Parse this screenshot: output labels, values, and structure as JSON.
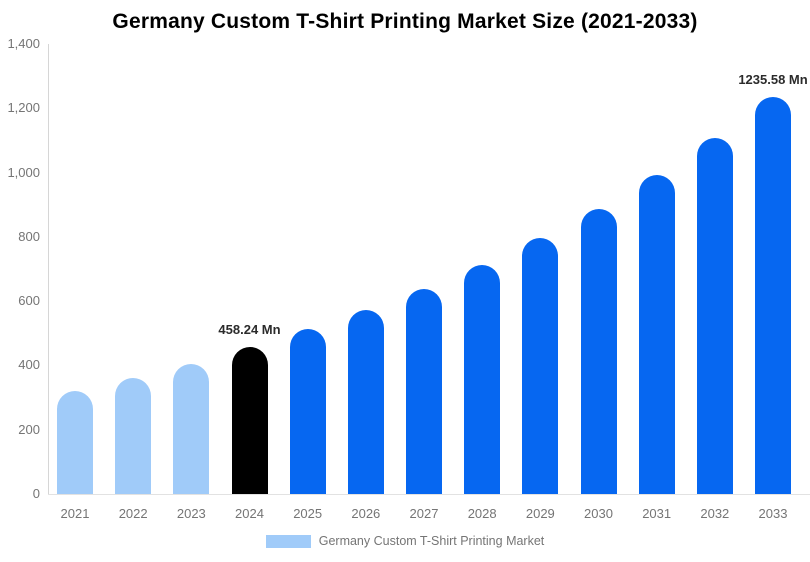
{
  "title": "Germany Custom T-Shirt Printing Market Size (2021-2033)",
  "legend": {
    "label": "Germany Custom T-Shirt Printing Market",
    "swatch_color": "#a0cbf9"
  },
  "colors": {
    "historical_bar": "#a0cbf9",
    "current_year_bar": "#000000",
    "forecast_bar": "#0667f1",
    "axis_text": "#757575",
    "axis_line": "#d6d6d6",
    "annotation_text": "#2b2b2b",
    "title_text": "#000000"
  },
  "chart_data": {
    "type": "bar",
    "title": "Germany Custom T-Shirt Printing Market Size (2021-2033)",
    "unit": "Mn",
    "categories": [
      "2021",
      "2022",
      "2023",
      "2024",
      "2025",
      "2026",
      "2027",
      "2028",
      "2029",
      "2030",
      "2031",
      "2032",
      "2033"
    ],
    "values": [
      322,
      362,
      403,
      458.24,
      512,
      571,
      638,
      712,
      795,
      888,
      991,
      1107,
      1235.58
    ],
    "bar_roles": [
      "historical",
      "historical",
      "historical",
      "current",
      "forecast",
      "forecast",
      "forecast",
      "forecast",
      "forecast",
      "forecast",
      "forecast",
      "forecast",
      "forecast"
    ],
    "annotations": [
      {
        "category": "2024",
        "text": "458.24 Mn"
      },
      {
        "category": "2033",
        "text": "1235.58 Mn"
      }
    ],
    "y_ticks": [
      {
        "value": 0,
        "label": "0"
      },
      {
        "value": 200,
        "label": "200"
      },
      {
        "value": 400,
        "label": "400"
      },
      {
        "value": 600,
        "label": "600"
      },
      {
        "value": 800,
        "label": "800"
      },
      {
        "value": 1000,
        "label": "1,000"
      },
      {
        "value": 1200,
        "label": "1,200"
      },
      {
        "value": 1400,
        "label": "1,400"
      }
    ],
    "ylim": [
      0,
      1400
    ],
    "xlabel": "",
    "ylabel": "",
    "grid": false,
    "legend_position": "bottom",
    "legend_entries": [
      "Germany Custom T-Shirt Printing Market"
    ]
  }
}
